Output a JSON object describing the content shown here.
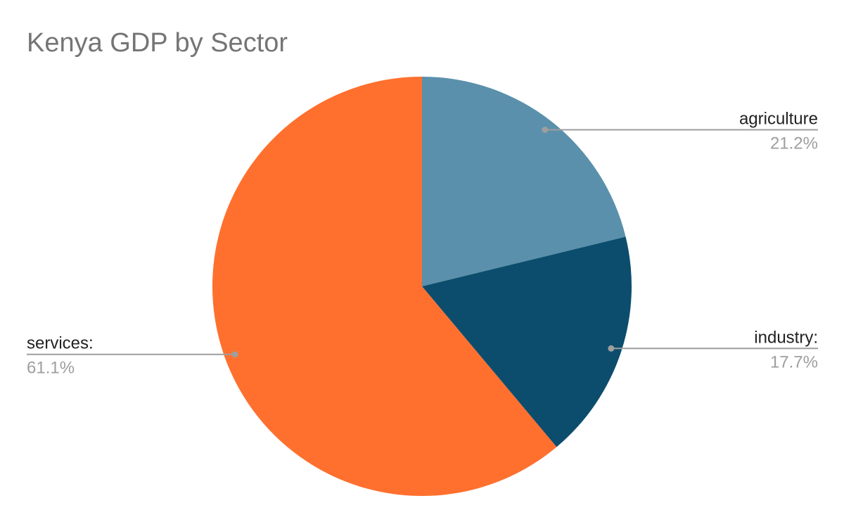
{
  "page": {
    "background": "#ffffff"
  },
  "chart_data": {
    "type": "pie",
    "title": "Kenya GDP by Sector",
    "title_color": "#757575",
    "label_color": "#212121",
    "percent_color": "#9e9e9e",
    "leader_line_color": "#9e9e9e",
    "start_angle_deg": 0,
    "direction": "clockwise",
    "legend_position": "outside-labels",
    "grid": false,
    "slices": [
      {
        "label": "agriculture",
        "percent": 21.2,
        "percent_label": "21.2%",
        "color": "#5a90ab"
      },
      {
        "label": "industry:",
        "percent": 17.7,
        "percent_label": "17.7%",
        "color": "#0c4d6d"
      },
      {
        "label": "services:",
        "percent": 61.1,
        "percent_label": "61.1%",
        "color": "#ff702f"
      }
    ]
  }
}
